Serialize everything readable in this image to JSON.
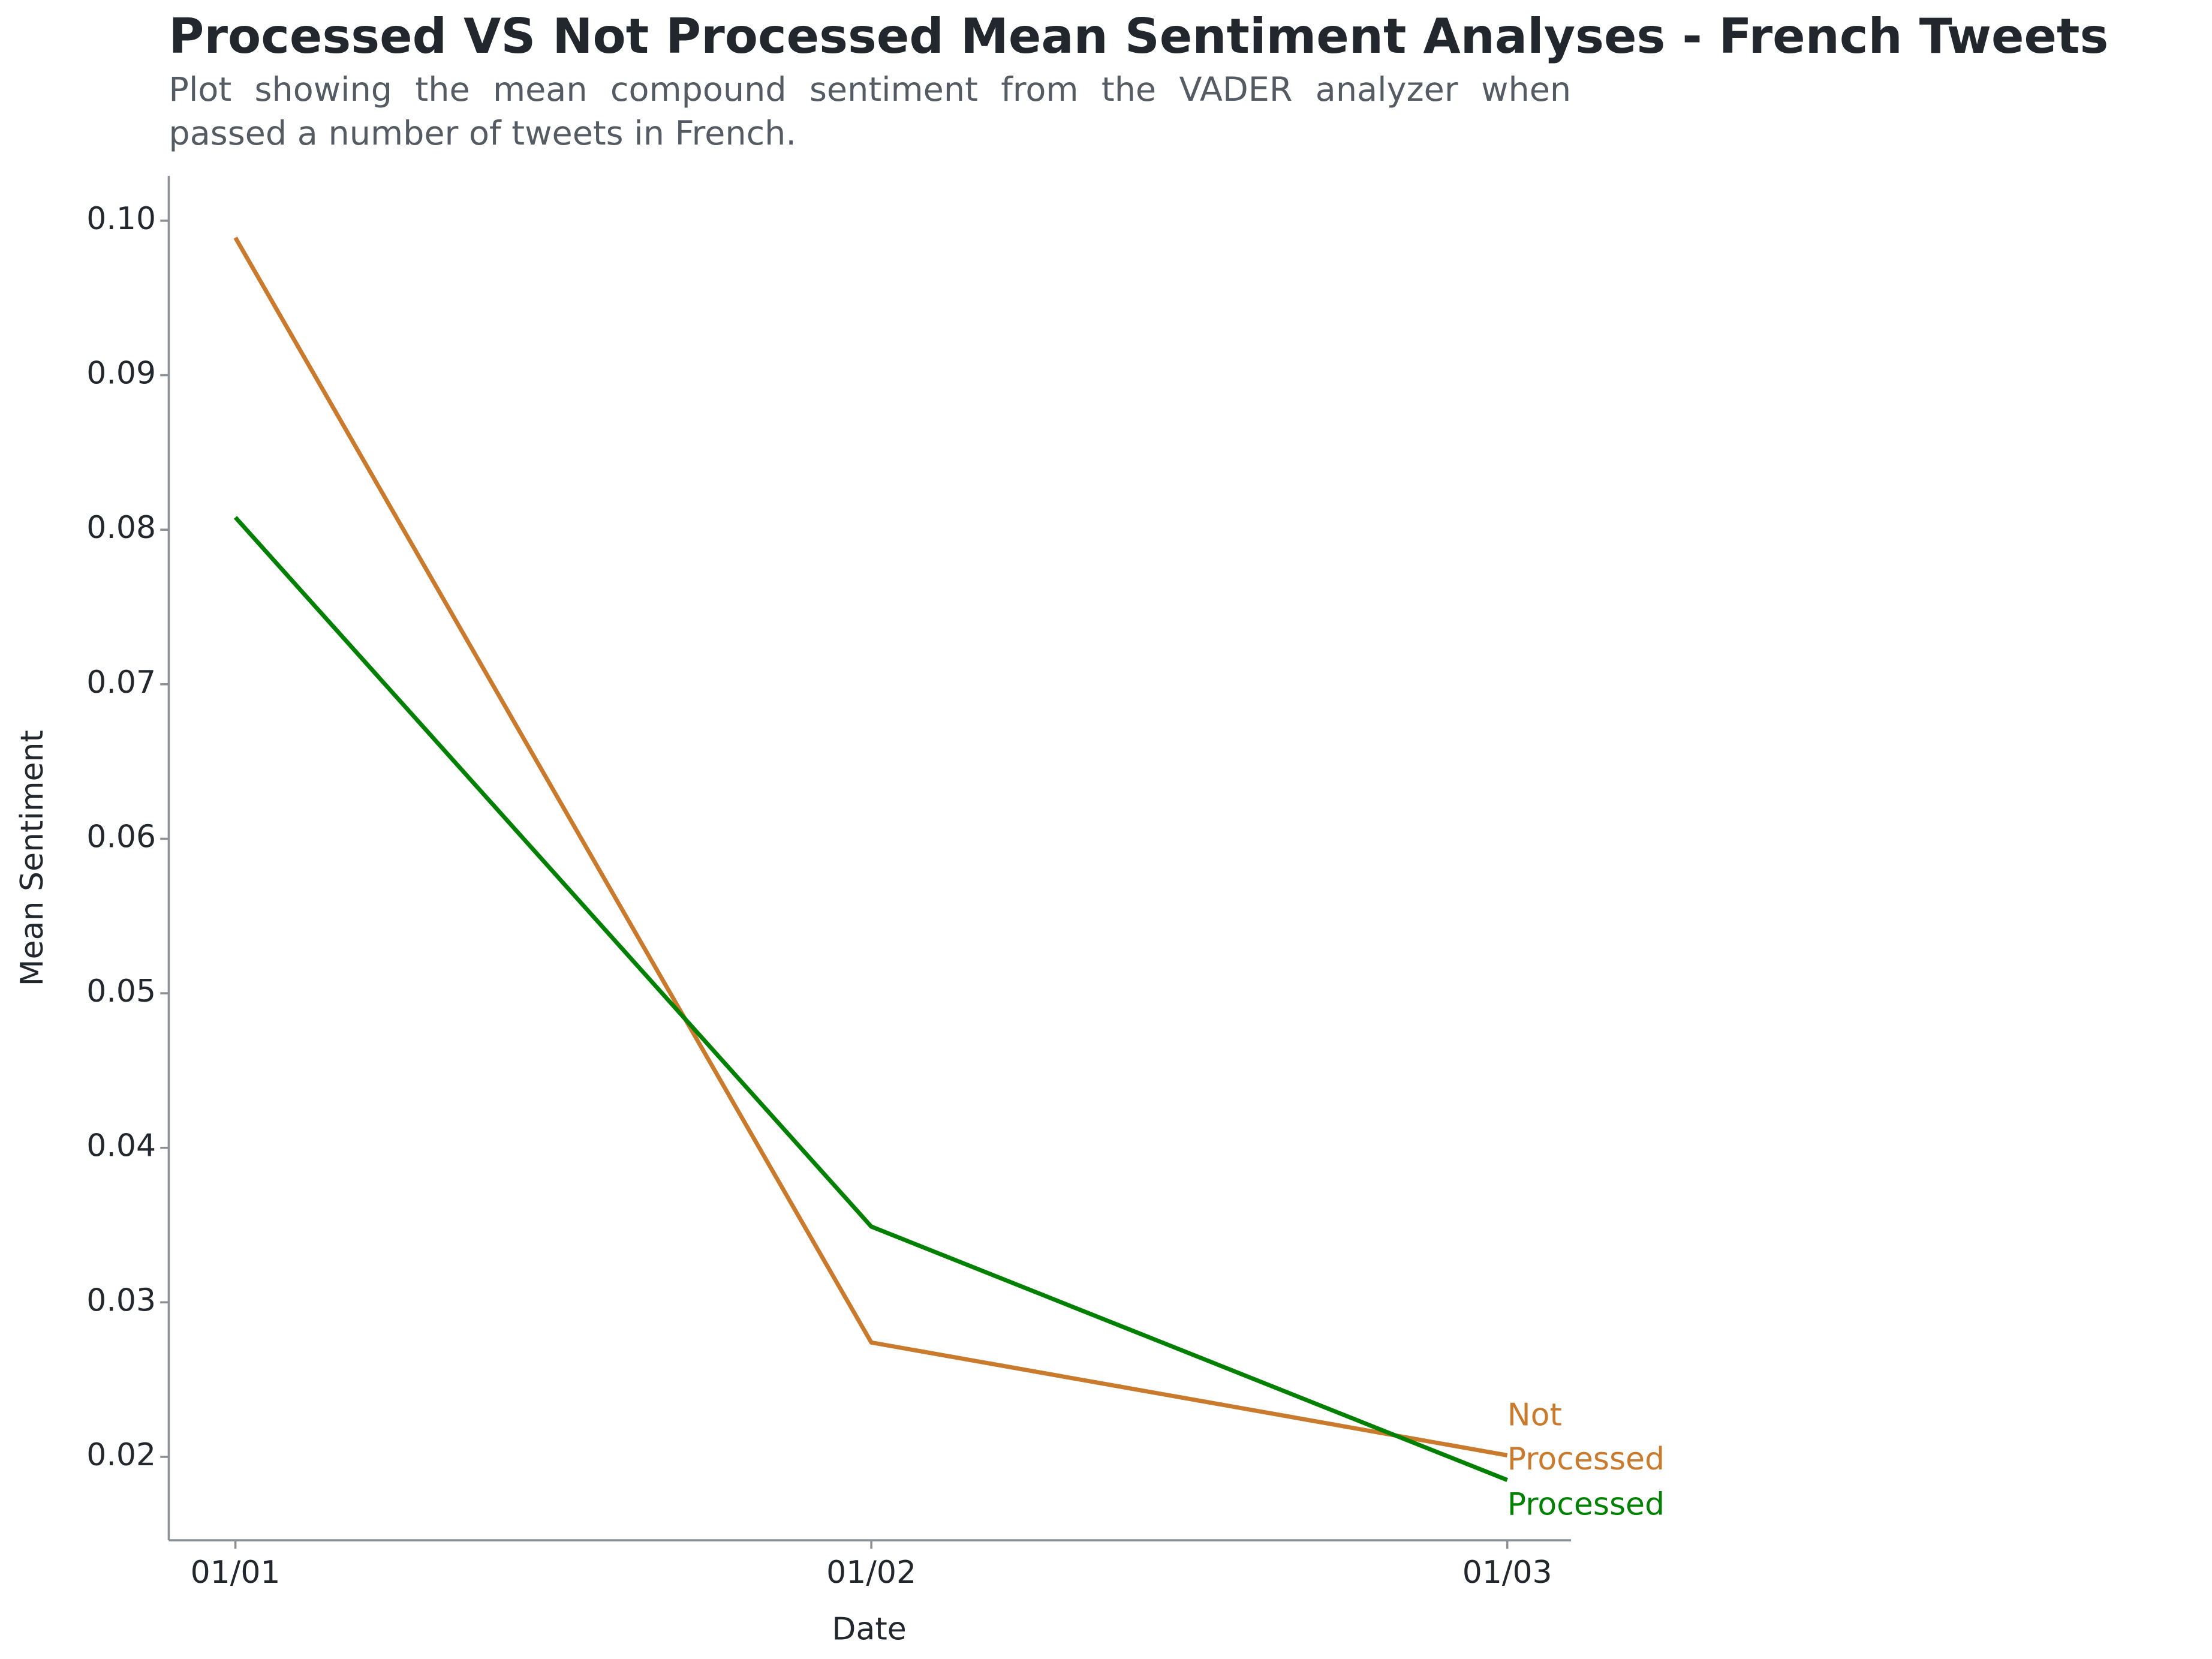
{
  "chart_data": {
    "type": "line",
    "title": "Processed VS Not Processed Mean Sentiment Analyses - French Tweets",
    "subtitle": "Plot showing the mean compound sentiment from the VADER analyzer when passed a number of tweets in French.",
    "x_label": "Date",
    "y_label": "Mean Sentiment",
    "categories": [
      "01/01",
      "01/02",
      "01/03"
    ],
    "series": [
      {
        "name": "Not Processed",
        "color": "#c97a2c",
        "values": [
          0.0989,
          0.0274,
          0.0201
        ]
      },
      {
        "name": "Processed",
        "color": "#008000",
        "values": [
          0.0808,
          0.0349,
          0.0185
        ]
      }
    ],
    "ylim": [
      0.0146,
      0.1029
    ],
    "yticks": [
      0.02,
      0.03,
      0.04,
      0.05,
      0.06,
      0.07,
      0.08,
      0.09,
      {
        "value": 0.1,
        "label": "0.10"
      }
    ]
  }
}
